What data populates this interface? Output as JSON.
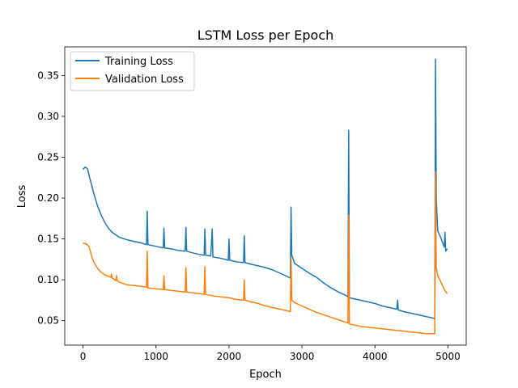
{
  "chart_data": {
    "type": "line",
    "title": "LSTM Loss per Epoch",
    "xlabel": "Epoch",
    "ylabel": "Loss",
    "xlim": [
      -250,
      5250
    ],
    "ylim": [
      0.02,
      0.385
    ],
    "xticks": [
      0,
      1000,
      2000,
      3000,
      4000,
      5000
    ],
    "yticks": [
      0.05,
      0.1,
      0.15,
      0.2,
      0.25,
      0.3,
      0.35
    ],
    "ytick_labels": [
      "0.05",
      "0.10",
      "0.15",
      "0.20",
      "0.25",
      "0.30",
      "0.35"
    ],
    "grid": false,
    "legend_position": "upper-left",
    "colors": {
      "training": "#1f77b4",
      "validation": "#ff7f0e"
    },
    "series": [
      {
        "name": "Training Loss",
        "color": "#1f77b4",
        "points": [
          [
            0,
            0.235
          ],
          [
            30,
            0.238
          ],
          [
            60,
            0.236
          ],
          [
            100,
            0.222
          ],
          [
            150,
            0.205
          ],
          [
            200,
            0.19
          ],
          [
            250,
            0.179
          ],
          [
            300,
            0.17
          ],
          [
            350,
            0.163
          ],
          [
            400,
            0.158
          ],
          [
            450,
            0.155
          ],
          [
            500,
            0.152
          ],
          [
            600,
            0.149
          ],
          [
            700,
            0.147
          ],
          [
            800,
            0.145
          ],
          [
            870,
            0.143
          ],
          [
            880,
            0.184
          ],
          [
            890,
            0.143
          ],
          [
            1000,
            0.141
          ],
          [
            1100,
            0.139
          ],
          [
            1110,
            0.163
          ],
          [
            1120,
            0.139
          ],
          [
            1200,
            0.138
          ],
          [
            1300,
            0.136
          ],
          [
            1400,
            0.135
          ],
          [
            1410,
            0.164
          ],
          [
            1420,
            0.135
          ],
          [
            1500,
            0.133
          ],
          [
            1600,
            0.131
          ],
          [
            1660,
            0.13
          ],
          [
            1670,
            0.162
          ],
          [
            1680,
            0.13
          ],
          [
            1750,
            0.129
          ],
          [
            1770,
            0.162
          ],
          [
            1780,
            0.128
          ],
          [
            1900,
            0.126
          ],
          [
            1990,
            0.124
          ],
          [
            2000,
            0.15
          ],
          [
            2010,
            0.124
          ],
          [
            2100,
            0.122
          ],
          [
            2200,
            0.121
          ],
          [
            2210,
            0.154
          ],
          [
            2220,
            0.121
          ],
          [
            2300,
            0.119
          ],
          [
            2400,
            0.117
          ],
          [
            2500,
            0.115
          ],
          [
            2600,
            0.112
          ],
          [
            2700,
            0.108
          ],
          [
            2800,
            0.104
          ],
          [
            2840,
            0.102
          ],
          [
            2850,
            0.189
          ],
          [
            2860,
            0.13
          ],
          [
            2900,
            0.12
          ],
          [
            3000,
            0.114
          ],
          [
            3100,
            0.108
          ],
          [
            3200,
            0.103
          ],
          [
            3300,
            0.096
          ],
          [
            3400,
            0.09
          ],
          [
            3500,
            0.085
          ],
          [
            3600,
            0.081
          ],
          [
            3630,
            0.079
          ],
          [
            3640,
            0.283
          ],
          [
            3650,
            0.078
          ],
          [
            3700,
            0.077
          ],
          [
            3800,
            0.075
          ],
          [
            3900,
            0.073
          ],
          [
            4000,
            0.071
          ],
          [
            4100,
            0.068
          ],
          [
            4200,
            0.066
          ],
          [
            4300,
            0.064
          ],
          [
            4310,
            0.075
          ],
          [
            4320,
            0.063
          ],
          [
            4400,
            0.061
          ],
          [
            4500,
            0.059
          ],
          [
            4600,
            0.057
          ],
          [
            4700,
            0.055
          ],
          [
            4800,
            0.053
          ],
          [
            4820,
            0.052
          ],
          [
            4830,
            0.37
          ],
          [
            4840,
            0.2
          ],
          [
            4860,
            0.16
          ],
          [
            4900,
            0.152
          ],
          [
            4950,
            0.14
          ],
          [
            4960,
            0.158
          ],
          [
            4970,
            0.135
          ],
          [
            4990,
            0.138
          ]
        ]
      },
      {
        "name": "Validation Loss",
        "color": "#ff7f0e",
        "points": [
          [
            0,
            0.145
          ],
          [
            40,
            0.144
          ],
          [
            80,
            0.141
          ],
          [
            100,
            0.135
          ],
          [
            120,
            0.128
          ],
          [
            150,
            0.121
          ],
          [
            200,
            0.114
          ],
          [
            250,
            0.109
          ],
          [
            300,
            0.106
          ],
          [
            380,
            0.103
          ],
          [
            390,
            0.107
          ],
          [
            400,
            0.102
          ],
          [
            450,
            0.099
          ],
          [
            460,
            0.105
          ],
          [
            470,
            0.099
          ],
          [
            500,
            0.097
          ],
          [
            600,
            0.094
          ],
          [
            700,
            0.093
          ],
          [
            800,
            0.092
          ],
          [
            870,
            0.091
          ],
          [
            880,
            0.135
          ],
          [
            890,
            0.09
          ],
          [
            1000,
            0.089
          ],
          [
            1100,
            0.088
          ],
          [
            1110,
            0.105
          ],
          [
            1120,
            0.088
          ],
          [
            1200,
            0.087
          ],
          [
            1300,
            0.086
          ],
          [
            1400,
            0.085
          ],
          [
            1410,
            0.115
          ],
          [
            1420,
            0.085
          ],
          [
            1500,
            0.084
          ],
          [
            1600,
            0.083
          ],
          [
            1660,
            0.082
          ],
          [
            1670,
            0.116
          ],
          [
            1680,
            0.082
          ],
          [
            1800,
            0.08
          ],
          [
            1900,
            0.079
          ],
          [
            2000,
            0.078
          ],
          [
            2100,
            0.076
          ],
          [
            2200,
            0.075
          ],
          [
            2210,
            0.1
          ],
          [
            2220,
            0.075
          ],
          [
            2300,
            0.073
          ],
          [
            2400,
            0.071
          ],
          [
            2500,
            0.068
          ],
          [
            2600,
            0.066
          ],
          [
            2700,
            0.064
          ],
          [
            2800,
            0.062
          ],
          [
            2840,
            0.061
          ],
          [
            2850,
            0.127
          ],
          [
            2860,
            0.075
          ],
          [
            2900,
            0.072
          ],
          [
            3000,
            0.068
          ],
          [
            3100,
            0.064
          ],
          [
            3200,
            0.06
          ],
          [
            3300,
            0.057
          ],
          [
            3400,
            0.054
          ],
          [
            3500,
            0.051
          ],
          [
            3600,
            0.048
          ],
          [
            3630,
            0.047
          ],
          [
            3640,
            0.179
          ],
          [
            3650,
            0.046
          ],
          [
            3700,
            0.045
          ],
          [
            3800,
            0.043
          ],
          [
            3900,
            0.042
          ],
          [
            4000,
            0.041
          ],
          [
            4100,
            0.04
          ],
          [
            4200,
            0.039
          ],
          [
            4300,
            0.038
          ],
          [
            4400,
            0.037
          ],
          [
            4500,
            0.036
          ],
          [
            4600,
            0.035
          ],
          [
            4700,
            0.034
          ],
          [
            4800,
            0.034
          ],
          [
            4820,
            0.034
          ],
          [
            4830,
            0.232
          ],
          [
            4840,
            0.115
          ],
          [
            4860,
            0.105
          ],
          [
            4900,
            0.098
          ],
          [
            4950,
            0.088
          ],
          [
            4990,
            0.083
          ]
        ]
      }
    ]
  }
}
